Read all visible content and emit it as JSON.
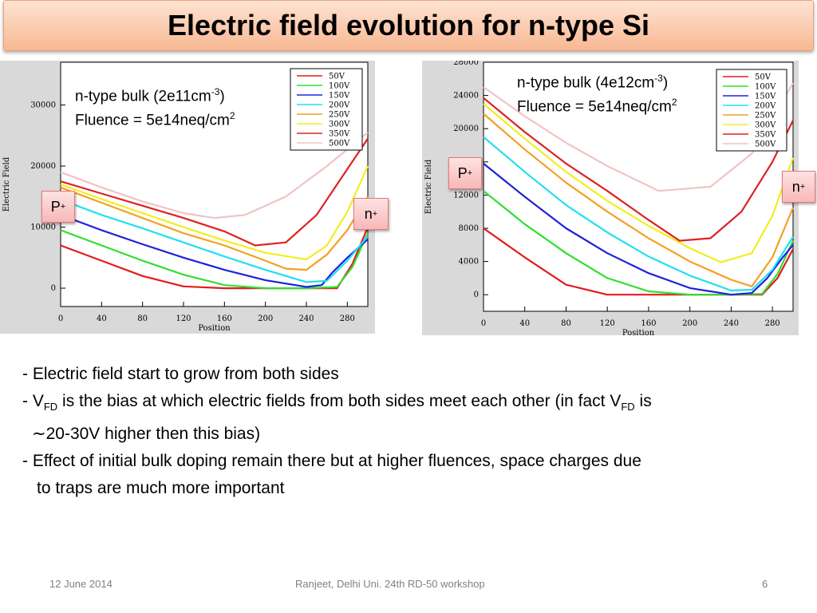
{
  "slide": {
    "title": "Electric field evolution for n-type Si",
    "footer_date": "12 June 2014",
    "footer_center": "Ranjeet, Delhi Uni. 24th RD-50 workshop",
    "footer_page": "6"
  },
  "annotations": {
    "left_bulk_pre": "n-type bulk (2e11cm",
    "left_bulk_sup": "-3",
    "left_bulk_post": ")",
    "left_fluence_pre": "Fluence = 5e14neq/cm",
    "left_fluence_sup": "2",
    "right_bulk_pre": "n-type bulk (4e12cm",
    "right_bulk_sup": "-3",
    "right_bulk_post": ")",
    "right_fluence_pre": "Fluence = 5e14neq/cm",
    "right_fluence_sup": "2",
    "p_tag": "P",
    "p_sup": "+",
    "n_tag": "n",
    "n_sup": "+"
  },
  "bullets": {
    "b1": "- Electric field start to grow from both sides",
    "b2_a": "- V",
    "b2_sub1": "FD",
    "b2_b": " is the bias at which electric fields from both sides meet each other (in fact V",
    "b2_sub2": "FD",
    "b2_c": " is",
    "b2_d": "∼20-30V higher then this bias)",
    "b3_a": "- Effect of initial bulk doping remain there but at higher fluences, space charges due",
    "b3_b": "to traps are much more important"
  },
  "chart_data": [
    {
      "type": "line",
      "xlabel": "Position",
      "ylabel": "Electric Field",
      "xlim": [
        0,
        300
      ],
      "ylim": [
        -3000,
        37000
      ],
      "xticks": [
        0,
        40,
        80,
        120,
        160,
        200,
        240,
        280
      ],
      "yticks": [
        0,
        10000,
        20000,
        30000
      ],
      "legend_position": "top-right",
      "series": [
        {
          "name": "50V",
          "color": "#e41a1c",
          "x": [
            0,
            40,
            80,
            120,
            160,
            200,
            240,
            270,
            285,
            300
          ],
          "y": [
            7000,
            4500,
            2000,
            300,
            0,
            0,
            0,
            0,
            4000,
            10000
          ]
        },
        {
          "name": "100V",
          "color": "#33dd33",
          "x": [
            0,
            40,
            80,
            120,
            160,
            200,
            240,
            270,
            285,
            300
          ],
          "y": [
            9500,
            7000,
            4500,
            2200,
            500,
            0,
            0,
            200,
            3500,
            9000
          ]
        },
        {
          "name": "150V",
          "color": "#2020dd",
          "x": [
            0,
            40,
            80,
            120,
            160,
            200,
            240,
            255,
            265,
            280,
            300
          ],
          "y": [
            12000,
            9500,
            7200,
            5000,
            3000,
            1300,
            200,
            500,
            2500,
            5000,
            8000
          ]
        },
        {
          "name": "200V",
          "color": "#22e0ee",
          "x": [
            0,
            40,
            80,
            120,
            160,
            200,
            240,
            260,
            280,
            300
          ],
          "y": [
            14500,
            12000,
            9800,
            7500,
            5200,
            3000,
            1000,
            1200,
            4500,
            8500
          ]
        },
        {
          "name": "250V",
          "color": "#f4a020",
          "x": [
            0,
            40,
            80,
            120,
            160,
            200,
            220,
            240,
            260,
            280,
            300
          ],
          "y": [
            16500,
            14000,
            11500,
            9000,
            7000,
            4500,
            3200,
            3000,
            5500,
            9500,
            15000
          ]
        },
        {
          "name": "300V",
          "color": "#f2ee20",
          "x": [
            0,
            40,
            80,
            120,
            160,
            200,
            240,
            260,
            280,
            300
          ],
          "y": [
            17000,
            14600,
            12300,
            10000,
            7800,
            5800,
            4700,
            7000,
            12500,
            20000
          ]
        },
        {
          "name": "350V",
          "color": "#dd2222",
          "x": [
            0,
            40,
            80,
            120,
            160,
            190,
            220,
            250,
            280,
            300
          ],
          "y": [
            17500,
            15500,
            13500,
            11500,
            9300,
            7000,
            7500,
            12000,
            19500,
            24500
          ]
        },
        {
          "name": "500V",
          "color": "#f0c4c4",
          "x": [
            0,
            40,
            80,
            120,
            150,
            180,
            220,
            260,
            300
          ],
          "y": [
            19000,
            16500,
            14200,
            12300,
            11500,
            12000,
            15000,
            20000,
            25500
          ]
        }
      ]
    },
    {
      "type": "line",
      "xlabel": "Position",
      "ylabel": "Electric Field",
      "xlim": [
        0,
        300
      ],
      "ylim": [
        -2000,
        28000
      ],
      "xticks": [
        0,
        40,
        80,
        120,
        160,
        200,
        240,
        280
      ],
      "yticks": [
        0,
        4000,
        8000,
        12000,
        16000,
        20000,
        24000,
        28000
      ],
      "legend_position": "top-right",
      "series": [
        {
          "name": "50V",
          "color": "#e41a1c",
          "x": [
            0,
            40,
            80,
            120,
            160,
            200,
            240,
            270,
            285,
            300
          ],
          "y": [
            8000,
            4500,
            1200,
            0,
            0,
            0,
            0,
            0,
            2000,
            5500
          ]
        },
        {
          "name": "100V",
          "color": "#33dd33",
          "x": [
            0,
            40,
            80,
            120,
            160,
            200,
            240,
            270,
            285,
            300
          ],
          "y": [
            12500,
            8500,
            5000,
            2000,
            400,
            0,
            0,
            100,
            2500,
            6500
          ]
        },
        {
          "name": "150V",
          "color": "#2020dd",
          "x": [
            0,
            40,
            80,
            120,
            160,
            200,
            240,
            260,
            275,
            290,
            300
          ],
          "y": [
            15800,
            11800,
            8000,
            5000,
            2600,
            800,
            0,
            200,
            2000,
            4500,
            6000
          ]
        },
        {
          "name": "200V",
          "color": "#22e0ee",
          "x": [
            0,
            40,
            80,
            120,
            160,
            200,
            240,
            260,
            280,
            300
          ],
          "y": [
            19000,
            14800,
            10800,
            7500,
            4600,
            2300,
            500,
            600,
            3000,
            7000
          ]
        },
        {
          "name": "250V",
          "color": "#f4a020",
          "x": [
            0,
            40,
            80,
            120,
            160,
            200,
            240,
            260,
            280,
            300
          ],
          "y": [
            21800,
            17500,
            13500,
            10000,
            6800,
            4000,
            1800,
            1000,
            4500,
            10500
          ]
        },
        {
          "name": "300V",
          "color": "#f2ee20",
          "x": [
            0,
            40,
            80,
            120,
            160,
            200,
            230,
            260,
            280,
            300
          ],
          "y": [
            23000,
            18800,
            14800,
            11300,
            8300,
            5600,
            3900,
            5000,
            9500,
            16500
          ]
        },
        {
          "name": "350V",
          "color": "#dd2222",
          "x": [
            0,
            40,
            80,
            120,
            160,
            190,
            220,
            250,
            280,
            300
          ],
          "y": [
            23700,
            19600,
            15800,
            12500,
            9000,
            6500,
            6800,
            10000,
            16000,
            21000
          ]
        },
        {
          "name": "500V",
          "color": "#f0c4c4",
          "x": [
            0,
            40,
            80,
            120,
            170,
            220,
            260,
            300
          ],
          "y": [
            25000,
            21500,
            18300,
            15500,
            12500,
            13000,
            17000,
            25500
          ]
        }
      ]
    }
  ]
}
